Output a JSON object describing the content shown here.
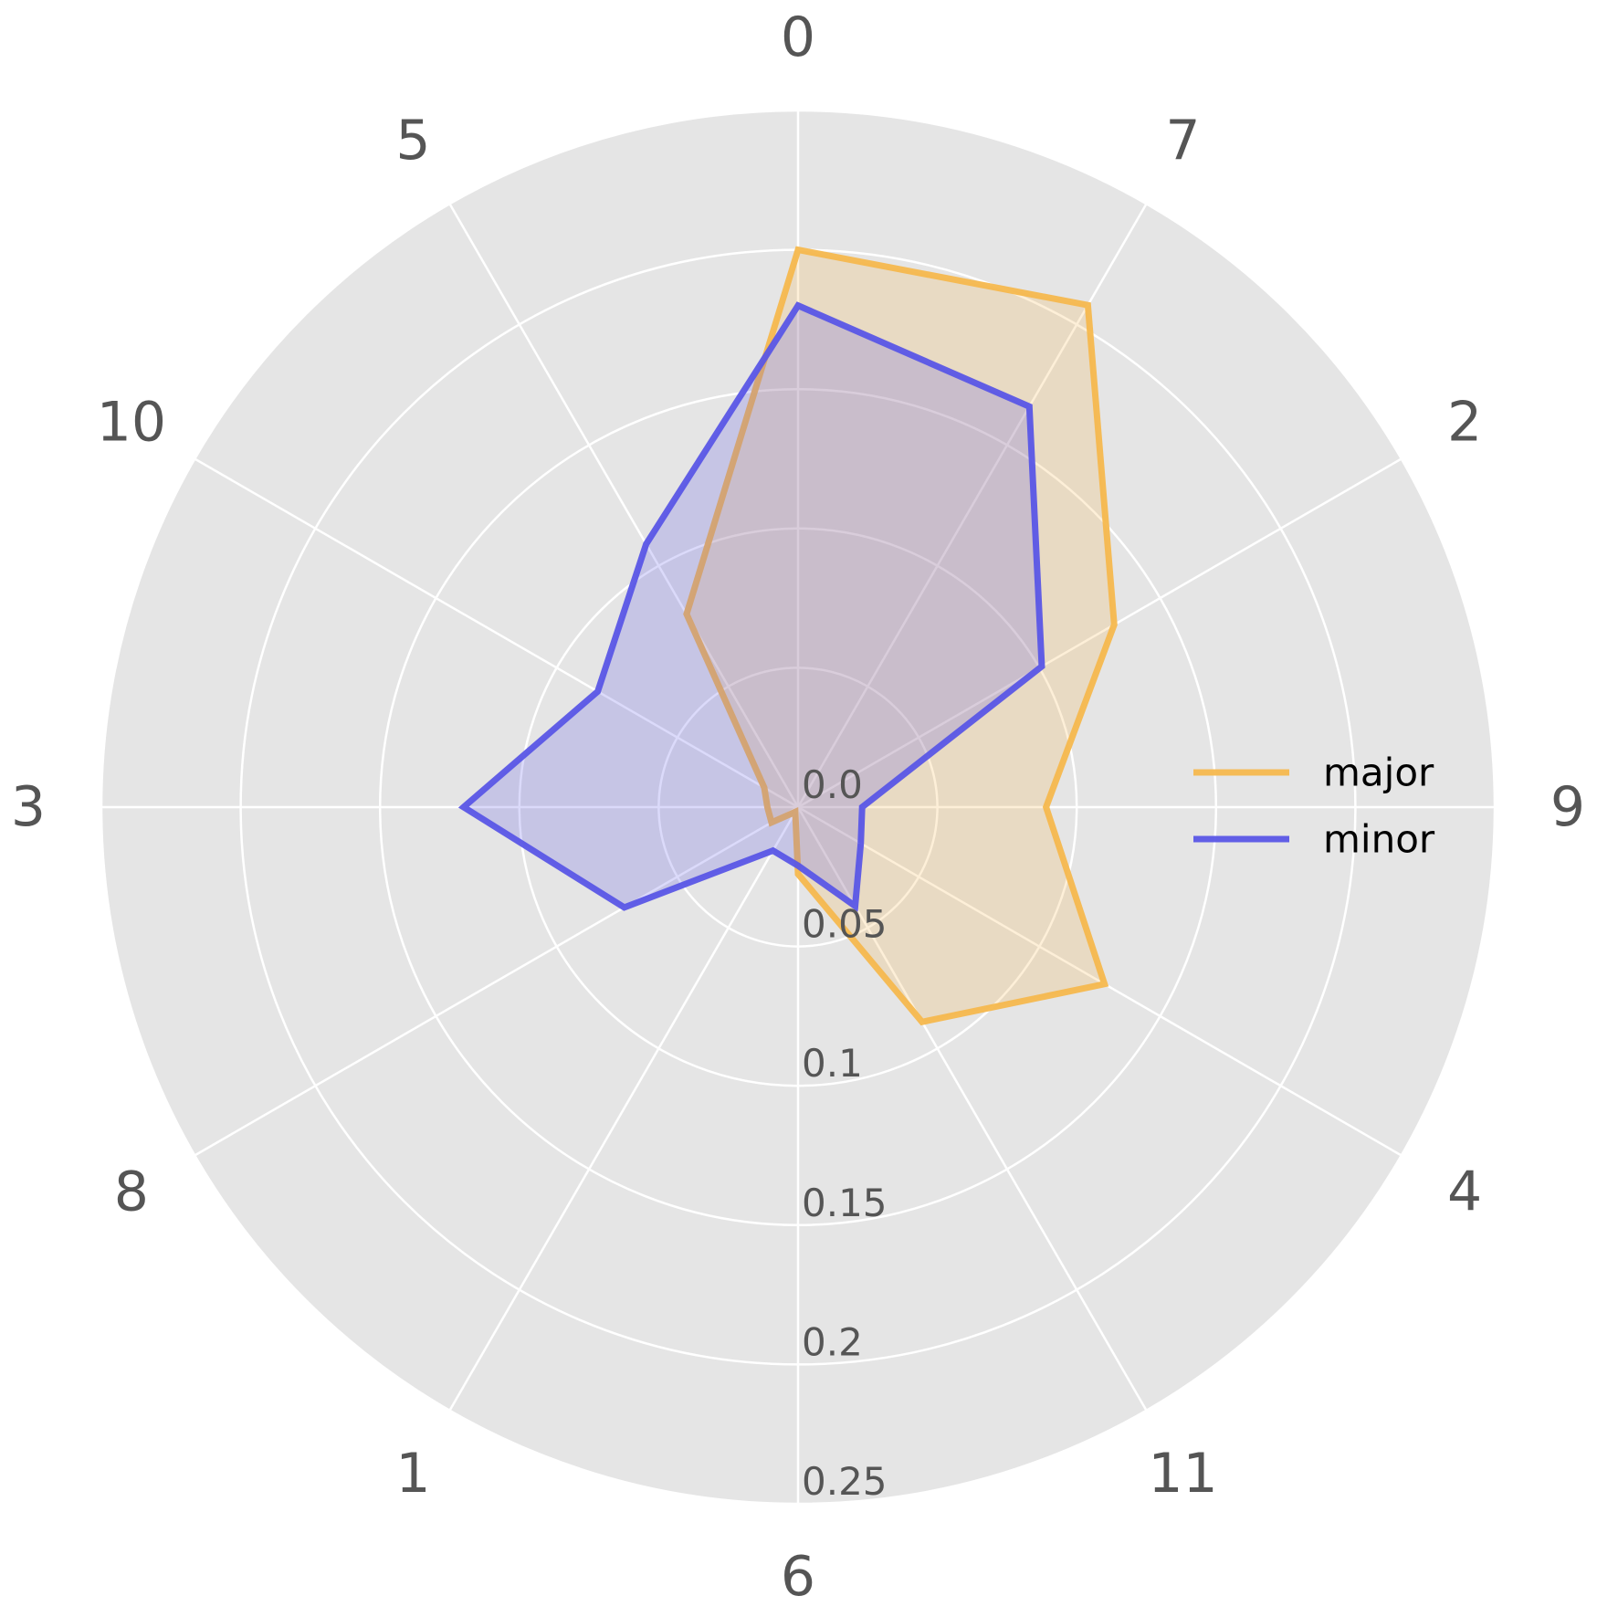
{
  "chart_data": {
    "type": "radar",
    "categories": [
      "0",
      "7",
      "2",
      "9",
      "4",
      "11",
      "6",
      "1",
      "8",
      "3",
      "10",
      "5"
    ],
    "radial_ticks": [
      "0.0",
      "0.05",
      "0.1",
      "0.15",
      "0.2",
      "0.25"
    ],
    "radial_values": [
      0,
      0.05,
      0.1,
      0.15,
      0.2,
      0.25
    ],
    "rlim": [
      0,
      0.25
    ],
    "grid": true,
    "legend": "right",
    "series": [
      {
        "name": "major",
        "color": "#f5b84e",
        "values": [
          0.2,
          0.208,
          0.131,
          0.089,
          0.127,
          0.089,
          0.024,
          0.002,
          0.011,
          0.011,
          0.014,
          0.08
        ]
      },
      {
        "name": "minor",
        "color": "#5a56e6",
        "values": [
          0.18,
          0.166,
          0.101,
          0.023,
          0.026,
          0.041,
          0.021,
          0.018,
          0.072,
          0.12,
          0.083,
          0.109
        ]
      }
    ]
  }
}
